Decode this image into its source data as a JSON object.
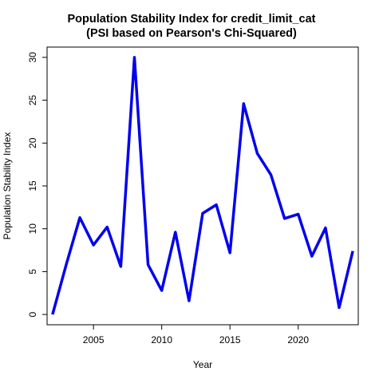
{
  "chart_data": {
    "type": "line",
    "title": "Population Stability Index for credit_limit_cat",
    "subtitle": "(PSI based on Pearson's Chi-Squared)",
    "xlabel": "Year",
    "ylabel": "Population Stability Index",
    "xlim": [
      2001.6,
      2024.4
    ],
    "ylim": [
      -1.2,
      31.2
    ],
    "x_ticks": [
      2005,
      2010,
      2015,
      2020
    ],
    "y_ticks": [
      0,
      5,
      10,
      15,
      20,
      25,
      30
    ],
    "grid": false,
    "series": [
      {
        "color": "#0000ee",
        "x": [
          2002,
          2003,
          2004,
          2005,
          2006,
          2007,
          2008,
          2009,
          2010,
          2011,
          2012,
          2013,
          2014,
          2015,
          2016,
          2017,
          2018,
          2019,
          2020,
          2021,
          2022,
          2023,
          2024
        ],
        "values": [
          0.0,
          5.8,
          11.3,
          8.1,
          10.2,
          5.6,
          30.0,
          5.8,
          2.8,
          9.6,
          1.6,
          11.8,
          12.8,
          7.2,
          24.6,
          18.8,
          16.3,
          11.2,
          11.7,
          6.8,
          10.1,
          0.8,
          7.4
        ]
      }
    ]
  }
}
